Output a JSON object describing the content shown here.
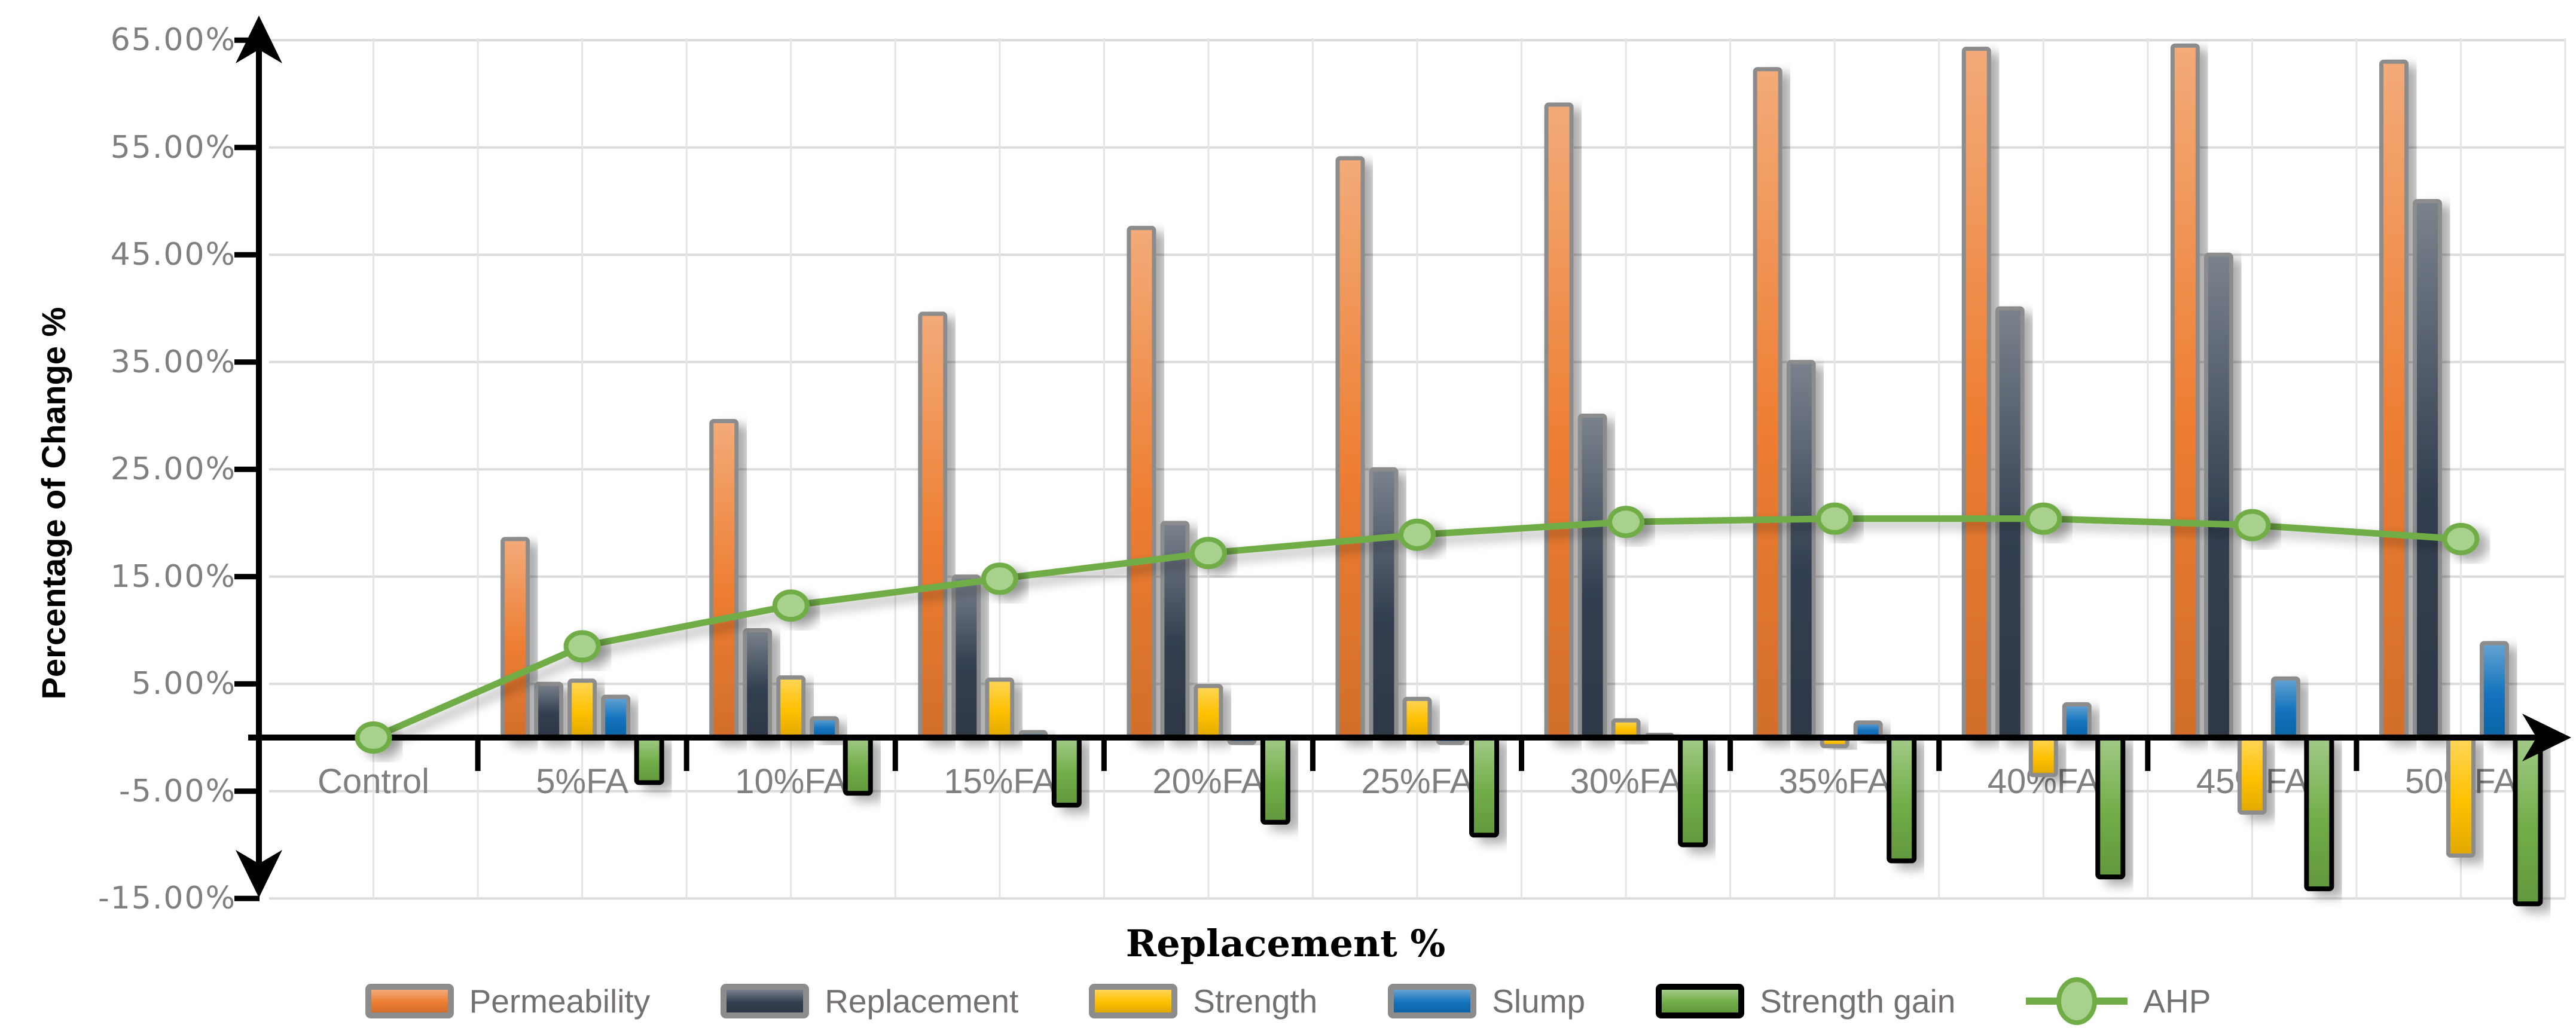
{
  "chart_data": {
    "type": "bar+line",
    "title": "",
    "xlabel": "Replacement %",
    "ylabel": "Percentage of Change %",
    "legend_position": "bottom",
    "grid": true,
    "ylim": [
      -15,
      65
    ],
    "y_ticks": [
      "65.00%",
      "55.00%",
      "45.00%",
      "35.00%",
      "25.00%",
      "15.00%",
      "5.00%",
      "-5.00%",
      "-15.00%"
    ],
    "y_tick_values": [
      65,
      55,
      45,
      35,
      25,
      15,
      5,
      -5,
      -15
    ],
    "categories": [
      "Control",
      "5%FA",
      "10%FA",
      "15%FA",
      "20%FA",
      "25%FA",
      "30%FA",
      "35%FA",
      "40%FA",
      "45%FA",
      "50%FA"
    ],
    "series": [
      {
        "name": "Permeability",
        "type": "bar",
        "color": "#ED7D31",
        "border": "#8C8C8C",
        "values": [
          0,
          18.5,
          29.5,
          39.5,
          47.5,
          54.0,
          59.0,
          62.3,
          64.2,
          64.5,
          63.0
        ]
      },
      {
        "name": "Replacement",
        "type": "bar",
        "color": "#333F50",
        "border": "#8C8C8C",
        "values": [
          0,
          5,
          10,
          15,
          20,
          25,
          30,
          35,
          40,
          45,
          50
        ]
      },
      {
        "name": "Strength",
        "type": "bar",
        "color": "#FFC000",
        "border": "#8C8C8C",
        "values": [
          0,
          5.3,
          5.6,
          5.4,
          4.8,
          3.6,
          1.6,
          -0.8,
          -3.5,
          -7.0,
          -11.0
        ]
      },
      {
        "name": "Slump",
        "type": "bar",
        "color": "#1272BC",
        "border": "#8C8C8C",
        "values": [
          0,
          3.8,
          1.8,
          0.5,
          -0.5,
          -0.5,
          0.3,
          1.4,
          3.1,
          5.5,
          8.8
        ]
      },
      {
        "name": "Strength gain",
        "type": "bar",
        "color": "#70AD47",
        "border": "#000000",
        "values": [
          0,
          -4.2,
          -5.2,
          -6.3,
          -7.9,
          -9.1,
          -10.0,
          -11.5,
          -13.0,
          -14.1,
          -15.5
        ]
      },
      {
        "name": "AHP",
        "type": "line",
        "color": "#70AD47",
        "marker_fill": "#A9D18E",
        "values": [
          0,
          8.5,
          12.3,
          14.8,
          17.2,
          18.9,
          20.1,
          20.4,
          20.4,
          19.8,
          18.5
        ]
      }
    ],
    "colors": {
      "gridline": "#DBDBDB",
      "axis": "#000000",
      "tick_label": "#7F7F7F",
      "legend_label": "#757070"
    }
  }
}
